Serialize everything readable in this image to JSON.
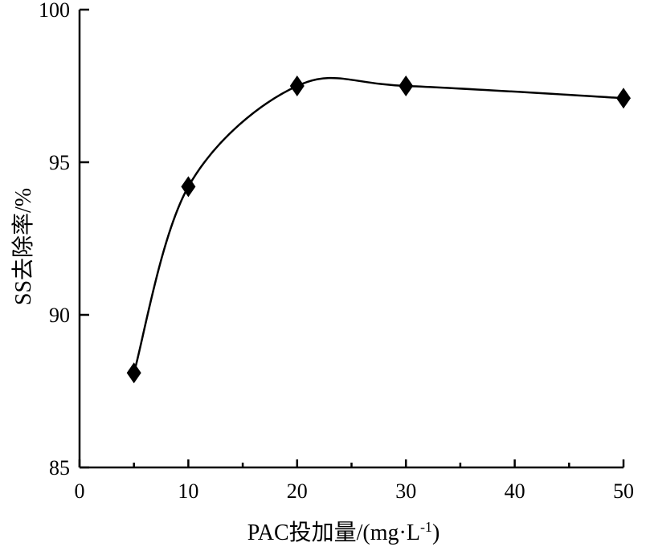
{
  "chart_data": {
    "type": "line",
    "xlabel": "PAC投加量/(mg·L",
    "xlabel_sup": "-1",
    "xlabel_close": ")",
    "ylabel": "SS去除率/%",
    "xlim": [
      0,
      50
    ],
    "ylim": [
      85,
      100
    ],
    "x_ticks": [
      0,
      10,
      20,
      30,
      40,
      50
    ],
    "y_ticks": [
      85,
      90,
      95,
      100
    ],
    "grid": false,
    "series": [
      {
        "marker": "diamond",
        "smooth": true,
        "x": [
          5,
          10,
          20,
          30,
          50
        ],
        "y": [
          88.1,
          94.2,
          97.5,
          97.5,
          97.1
        ]
      }
    ]
  }
}
